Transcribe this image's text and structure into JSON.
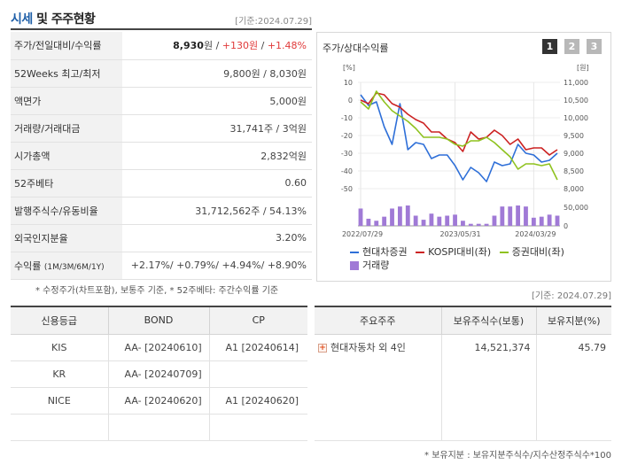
{
  "header": {
    "title_accent": "시세",
    "title_rest": " 및 주주현황",
    "date": "[기준:2024.07.29]"
  },
  "quote_rows": [
    {
      "label": "주가/전일대비/수익률",
      "value": "",
      "price": "8,930",
      "unit": "원",
      "sep1": " / ",
      "change": "+130원",
      "sep2": " / ",
      "rate": "+1.48%"
    },
    {
      "label": "52Weeks 최고/최저",
      "value": "9,800원 / 8,030원"
    },
    {
      "label": "액면가",
      "value": "5,000원"
    },
    {
      "label": "거래량/거래대금",
      "value": "31,741주 / 3억원"
    },
    {
      "label": "시가총액",
      "value": "2,832억원"
    },
    {
      "label": "52주베타",
      "value": "0.60"
    },
    {
      "label": "발행주식수/유동비율",
      "value": "31,712,562주 / 54.13%"
    },
    {
      "label": "외국인지분율",
      "value": "3.20%"
    },
    {
      "label": "수익률",
      "label_small": "(1M/3M/6M/1Y)",
      "value": "+2.17%/ +0.79%/ +4.94%/ +8.90%"
    }
  ],
  "note_left": "* 수정주가(차트포함), 보통주 기준, * 52주베타: 주간수익률 기준",
  "chart": {
    "title": "주가/상대수익률",
    "period_buttons": [
      "1",
      "2",
      "3"
    ]
  },
  "chart_data": {
    "type": "line",
    "left_axis_label": "[%]",
    "right_axis_label": "[원]",
    "left_ticks": [
      "10",
      "0",
      "-10",
      "-20",
      "-30",
      "-40",
      "-50"
    ],
    "right_ticks": [
      "11,000",
      "10,500",
      "10,000",
      "9,500",
      "9,000",
      "8,500",
      "8,000"
    ],
    "volume_ticks": [
      "50,000",
      "0"
    ],
    "x_labels": [
      "2022/07/29",
      "2023/05/31",
      "2024/03/29"
    ],
    "ylim_left": [
      -50,
      10
    ],
    "ylim_right": [
      8000,
      11000
    ],
    "series": [
      {
        "name": "현대차증권",
        "color": "#2e6fd8",
        "values": [
          3,
          -3,
          -1,
          -15,
          -25,
          -2,
          -28,
          -24,
          -25,
          -33,
          -31,
          -31,
          -37,
          -45,
          -38,
          -41,
          -46,
          -35,
          -37,
          -36,
          -25,
          -30,
          -31,
          -35,
          -34,
          -30
        ]
      },
      {
        "name": "KOSPI대비(좌)",
        "color": "#cc2222",
        "values": [
          0,
          -2,
          4,
          3,
          -2,
          -4,
          -8,
          -11,
          -13,
          -18,
          -18,
          -22,
          -24,
          -29,
          -18,
          -22,
          -21,
          -17,
          -20,
          -25,
          -22,
          -28,
          -27,
          -27,
          -31,
          -28
        ]
      },
      {
        "name": "증권대비(좌)",
        "color": "#8fc21f",
        "values": [
          -1,
          -5,
          5,
          -1,
          -6,
          -9,
          -12,
          -16,
          -21,
          -21,
          -21,
          -22,
          -25,
          -26,
          -23,
          -23,
          -21,
          -24,
          -28,
          -32,
          -39,
          -36,
          -36,
          -37,
          -36,
          -45
        ]
      }
    ],
    "volume": {
      "name": "거래량",
      "color": "#a07ad6",
      "values": [
        0.85,
        0.35,
        0.25,
        0.45,
        0.85,
        0.95,
        1.0,
        0.5,
        0.3,
        0.6,
        0.45,
        0.5,
        0.55,
        0.25,
        0.1,
        0.1,
        0.1,
        0.5,
        0.95,
        0.95,
        1.0,
        0.95,
        0.4,
        0.45,
        0.55,
        0.5
      ]
    }
  },
  "date_right": "[기준: 2024.07.29]",
  "credit": {
    "headers": [
      "신용등급",
      "BOND",
      "CP"
    ],
    "rows": [
      [
        "KIS",
        "AA- [20240610]",
        "A1 [20240614]"
      ],
      [
        "KR",
        "AA- [20240709]",
        ""
      ],
      [
        "NICE",
        "AA- [20240620]",
        "A1 [20240620]"
      ],
      [
        "",
        "",
        ""
      ]
    ]
  },
  "holders": {
    "headers": [
      "주요주주",
      "보유주식수(보통)",
      "보유지분(%)"
    ],
    "rows": [
      [
        "현대자동차 외 4인",
        "14,521,374",
        "45.79"
      ]
    ]
  },
  "note_right": "* 보유지분 : 보유지분주식수/지수산정주식수*100"
}
